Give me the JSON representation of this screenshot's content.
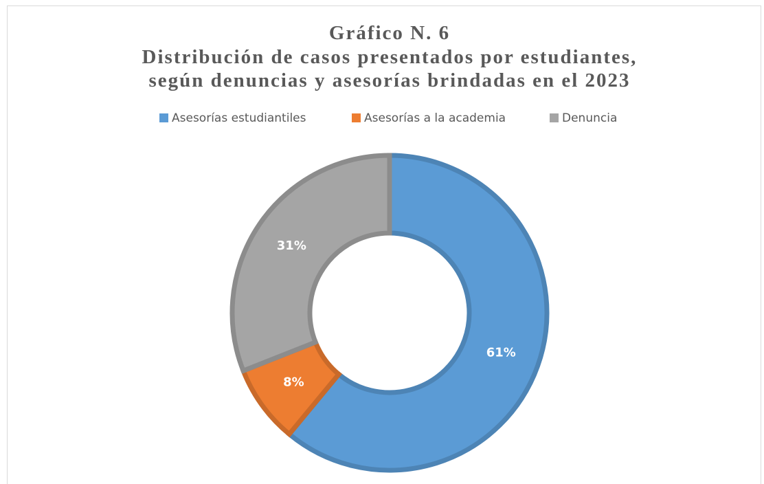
{
  "chart_data": {
    "type": "donut",
    "title": [
      "Gráfico N. 6",
      "Distribución de casos presentados por estudiantes,",
      "según denuncias y asesorías brindadas en el 2023"
    ],
    "categories": [
      "Asesorías estudiantiles",
      "Asesorías a la academia",
      "Denuncia"
    ],
    "values": [
      61,
      8,
      31
    ],
    "value_labels": [
      "61%",
      "8%",
      "31%"
    ],
    "colors": [
      "#5b9bd5",
      "#ed7d31",
      "#a5a5a5"
    ],
    "legend": "top"
  }
}
